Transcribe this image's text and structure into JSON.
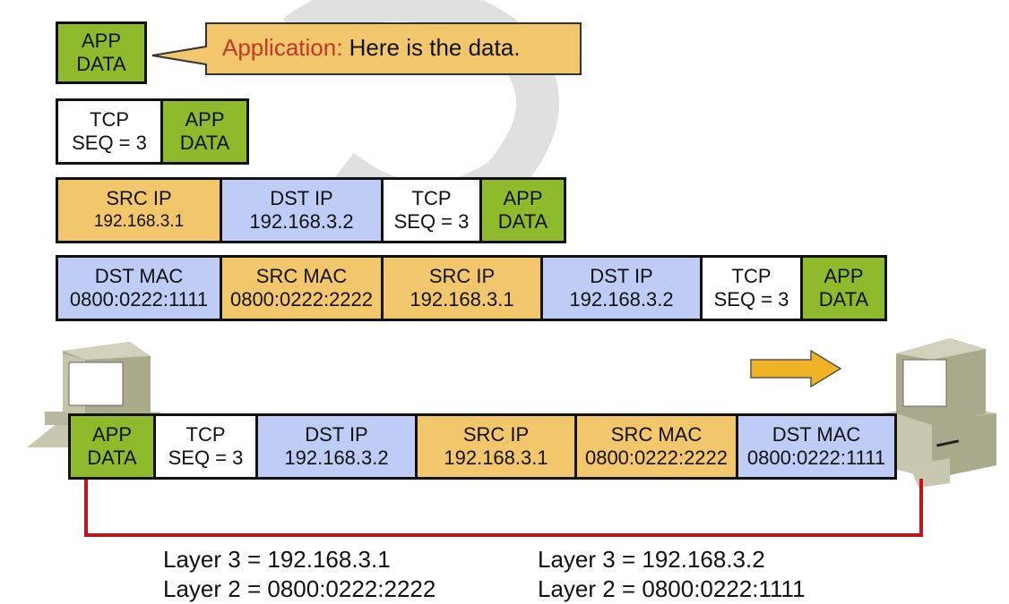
{
  "callout": {
    "speaker": "Application:",
    "message": " Here is the data.",
    "speaker_color": "#c0392b",
    "fill": "#f2c66a"
  },
  "colors": {
    "app_data": "#8fba2c",
    "tcp": "#ffffff",
    "ip_mac_src": "#f2c66a",
    "ip_mac_dst": "#bfcdf6",
    "link": "#c0141c",
    "arrow": "#f0b323"
  },
  "encapsulation_rows": [
    [
      {
        "title": "APP",
        "sub": "DATA",
        "color": "green"
      }
    ],
    [
      {
        "title": "TCP",
        "sub": "SEQ = 3",
        "color": "white"
      },
      {
        "title": "APP",
        "sub": "DATA",
        "color": "green"
      }
    ],
    [
      {
        "title": "SRC IP",
        "sub": "192.168.3.1",
        "color": "orange",
        "small": true
      },
      {
        "title": "DST IP",
        "sub": "192.168.3.2",
        "color": "blue"
      },
      {
        "title": "TCP",
        "sub": "SEQ = 3",
        "color": "white"
      },
      {
        "title": "APP",
        "sub": "DATA",
        "color": "green"
      }
    ],
    [
      {
        "title": "DST MAC",
        "sub": "0800:0222:1111",
        "color": "blue"
      },
      {
        "title": "SRC MAC",
        "sub": "0800:0222:2222",
        "color": "orange"
      },
      {
        "title": "SRC IP",
        "sub": "192.168.3.1",
        "color": "orange"
      },
      {
        "title": "DST IP",
        "sub": "192.168.3.2",
        "color": "blue"
      },
      {
        "title": "TCP",
        "sub": "SEQ = 3",
        "color": "white"
      },
      {
        "title": "APP",
        "sub": "DATA",
        "color": "green"
      }
    ],
    [
      {
        "title": "APP",
        "sub": "DATA",
        "color": "green"
      },
      {
        "title": "TCP",
        "sub": "SEQ = 3",
        "color": "white"
      },
      {
        "title": "DST IP",
        "sub": "192.168.3.2",
        "color": "blue"
      },
      {
        "title": "SRC IP",
        "sub": "192.168.3.1",
        "color": "orange"
      },
      {
        "title": "SRC MAC",
        "sub": "0800:0222:2222",
        "color": "orange"
      },
      {
        "title": "DST MAC",
        "sub": "0800:0222:1111",
        "color": "blue"
      }
    ]
  ],
  "hosts": {
    "sender": {
      "layer3": "Layer 3 = 192.168.3.1",
      "layer2": "Layer 2 = 0800:0222:2222"
    },
    "receiver": {
      "layer3": "Layer 3 = 192.168.3.2",
      "layer2": "Layer 2 = 0800:0222:1111"
    }
  },
  "direction": "right"
}
